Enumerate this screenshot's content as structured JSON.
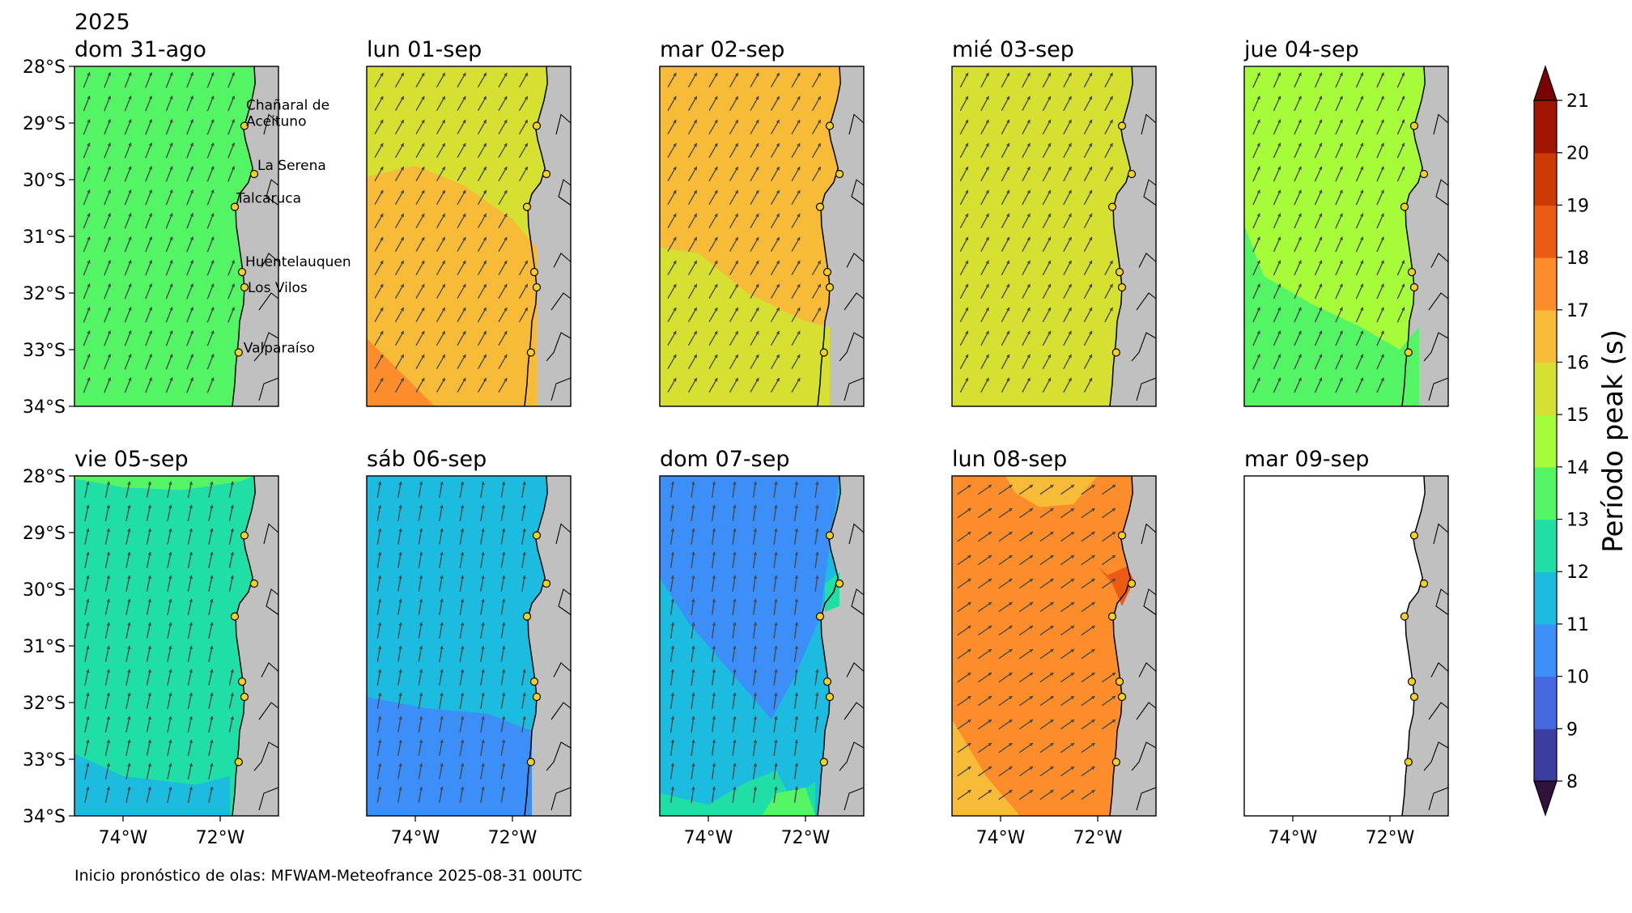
{
  "figure": {
    "year": "2025",
    "footer": "Inicio pronóstico de olas: MFWAM-Meteofrance 2025-08-31 00UTC"
  },
  "chart_data": {
    "type": "heatmap",
    "variable": "Período peak (s)",
    "map_extent": {
      "lon": [
        -75.0,
        -70.8
      ],
      "lat": [
        -34.0,
        -28.0
      ]
    },
    "y_ticks": [
      "28°S",
      "29°S",
      "30°S",
      "31°S",
      "32°S",
      "33°S",
      "34°S"
    ],
    "x_ticks": [
      "74°W",
      "72°W"
    ],
    "colorbar": {
      "label": "Período peak (s)",
      "levels": [
        8,
        9,
        10,
        11,
        12,
        13,
        14,
        15,
        16,
        17,
        18,
        19,
        20,
        21
      ],
      "tick_labels": [
        "8",
        "9",
        "10",
        "11",
        "12",
        "13",
        "14",
        "15",
        "16",
        "17",
        "18",
        "19",
        "20",
        "21"
      ],
      "colors": [
        "#30123b",
        "#3b3ea0",
        "#4668e0",
        "#3c8ef8",
        "#1bbcdf",
        "#20dfa6",
        "#53f565",
        "#a7fc3a",
        "#d6e031",
        "#f8bb38",
        "#fd8d2a",
        "#ec5b13",
        "#ce3a05",
        "#a21503",
        "#7a0403"
      ],
      "extend": "both"
    },
    "coast_points": [
      {
        "name": "Chañaral de Aceituno",
        "lon": -71.5,
        "lat": -29.05
      },
      {
        "name": "La Serena",
        "lon": -71.3,
        "lat": -29.9
      },
      {
        "name": "Talcaruca",
        "lon": -71.7,
        "lat": -30.48
      },
      {
        "name": "Huentelauquen",
        "lon": -71.55,
        "lat": -31.63
      },
      {
        "name": "Los Vilos",
        "lon": -71.5,
        "lat": -31.9
      },
      {
        "name": "Valparaíso",
        "lon": -71.62,
        "lat": -33.05
      }
    ],
    "panels": [
      {
        "title": "dom 31-ago",
        "labels": true,
        "base_period": 13.5,
        "arrow_dir": 22,
        "zones": [],
        "empty": false
      },
      {
        "title": "lun 01-sep",
        "labels": false,
        "base_period": 15.5,
        "arrow_dir": 30,
        "zones": [
          {
            "period": 16.5,
            "polygon": [
              [
                -75,
                -29.95
              ],
              [
                -74.0,
                -29.75
              ],
              [
                -73.0,
                -30.1
              ],
              [
                -72.0,
                -30.7
              ],
              [
                -71.5,
                -31.2
              ],
              [
                -71.5,
                -34
              ],
              [
                -75,
                -34
              ]
            ]
          },
          {
            "period": 17.5,
            "polygon": [
              [
                -75,
                -32.8
              ],
              [
                -74.3,
                -33.4
              ],
              [
                -73.6,
                -34
              ],
              [
                -75,
                -34
              ]
            ]
          }
        ],
        "empty": false
      },
      {
        "title": "mar 02-sep",
        "labels": false,
        "base_period": 16.5,
        "arrow_dir": 30,
        "zones": [
          {
            "period": 15.5,
            "polygon": [
              [
                -75,
                -31.2
              ],
              [
                -74.2,
                -31.3
              ],
              [
                -73.2,
                -32.0
              ],
              [
                -72.0,
                -32.5
              ],
              [
                -71.5,
                -32.6
              ],
              [
                -71.5,
                -34
              ],
              [
                -75,
                -34
              ]
            ]
          }
        ],
        "empty": false
      },
      {
        "title": "mié 03-sep",
        "labels": false,
        "base_period": 15.5,
        "arrow_dir": 28,
        "zones": [],
        "empty": false
      },
      {
        "title": "jue 04-sep",
        "labels": false,
        "base_period": 14.5,
        "arrow_dir": 24,
        "zones": [
          {
            "period": 13.5,
            "polygon": [
              [
                -75,
                -30.8
              ],
              [
                -74.6,
                -31.7
              ],
              [
                -73.6,
                -32.2
              ],
              [
                -72.6,
                -32.6
              ],
              [
                -71.8,
                -33.0
              ],
              [
                -71.4,
                -32.6
              ],
              [
                -71.4,
                -34
              ],
              [
                -75,
                -34
              ]
            ]
          }
        ],
        "empty": false
      },
      {
        "title": "vie 05-sep",
        "labels": false,
        "base_period": 12.5,
        "arrow_dir": 12,
        "zones": [
          {
            "period": 13.5,
            "polygon": [
              [
                -75,
                -28
              ],
              [
                -71.3,
                -28
              ],
              [
                -71.6,
                -28.1
              ],
              [
                -72.8,
                -28.25
              ],
              [
                -74.0,
                -28.2
              ],
              [
                -75,
                -28.05
              ]
            ]
          },
          {
            "period": 11.5,
            "polygon": [
              [
                -75,
                -32.9
              ],
              [
                -74.0,
                -33.3
              ],
              [
                -72.5,
                -33.45
              ],
              [
                -71.8,
                -33.3
              ],
              [
                -71.8,
                -34
              ],
              [
                -75,
                -34
              ]
            ]
          }
        ],
        "empty": false
      },
      {
        "title": "sáb 06-sep",
        "labels": false,
        "base_period": 11.5,
        "arrow_dir": 10,
        "zones": [
          {
            "period": 10.5,
            "polygon": [
              [
                -75,
                -31.9
              ],
              [
                -73.8,
                -32.1
              ],
              [
                -72.5,
                -32.2
              ],
              [
                -71.6,
                -32.5
              ],
              [
                -71.6,
                -34
              ],
              [
                -75,
                -34
              ]
            ]
          }
        ],
        "empty": false
      },
      {
        "title": "dom 07-sep",
        "labels": false,
        "base_period": 11.5,
        "arrow_dir": 8,
        "zones": [
          {
            "period": 10.5,
            "polygon": [
              [
                -75,
                -28
              ],
              [
                -71.3,
                -28
              ],
              [
                -71.5,
                -29.2
              ],
              [
                -71.7,
                -30.5
              ],
              [
                -72.2,
                -31.5
              ],
              [
                -72.7,
                -32.3
              ],
              [
                -73.5,
                -31.5
              ],
              [
                -74.4,
                -30.6
              ],
              [
                -75,
                -29.8
              ]
            ]
          },
          {
            "period": 12.5,
            "polygon": [
              [
                -75,
                -33.6
              ],
              [
                -74.0,
                -33.8
              ],
              [
                -73.2,
                -33.4
              ],
              [
                -72.6,
                -33.2
              ],
              [
                -72.3,
                -33.7
              ],
              [
                -71.8,
                -33.4
              ],
              [
                -71.8,
                -34
              ],
              [
                -75,
                -34
              ]
            ]
          },
          {
            "period": 13.5,
            "polygon": [
              [
                -72.9,
                -34
              ],
              [
                -72.6,
                -33.6
              ],
              [
                -72.0,
                -33.5
              ],
              [
                -71.8,
                -34
              ]
            ]
          },
          {
            "period": 12.5,
            "polygon": [
              [
                -71.6,
                -29.9
              ],
              [
                -71.3,
                -29.7
              ],
              [
                -71.3,
                -30.3
              ],
              [
                -71.6,
                -30.4
              ]
            ]
          }
        ],
        "empty": false
      },
      {
        "title": "lun 08-sep",
        "labels": false,
        "base_period": 17.5,
        "arrow_dir": 55,
        "zones": [
          {
            "period": 16.5,
            "polygon": [
              [
                -73.9,
                -28
              ],
              [
                -72.0,
                -28
              ],
              [
                -72.5,
                -28.5
              ],
              [
                -73.2,
                -28.55
              ],
              [
                -73.7,
                -28.3
              ]
            ]
          },
          {
            "period": 16.5,
            "polygon": [
              [
                -75,
                -32.3
              ],
              [
                -74.3,
                -33.3
              ],
              [
                -73.6,
                -34
              ],
              [
                -75,
                -34
              ]
            ]
          },
          {
            "period": 18.5,
            "polygon": [
              [
                -72.0,
                -29.6
              ],
              [
                -71.7,
                -29.9
              ],
              [
                -71.5,
                -30.3
              ],
              [
                -71.25,
                -29.85
              ],
              [
                -71.4,
                -29.6
              ],
              [
                -71.8,
                -29.75
              ]
            ]
          }
        ],
        "empty": false
      },
      {
        "title": "mar 09-sep",
        "labels": false,
        "base_period": null,
        "arrow_dir": 0,
        "zones": [],
        "empty": true
      }
    ]
  }
}
